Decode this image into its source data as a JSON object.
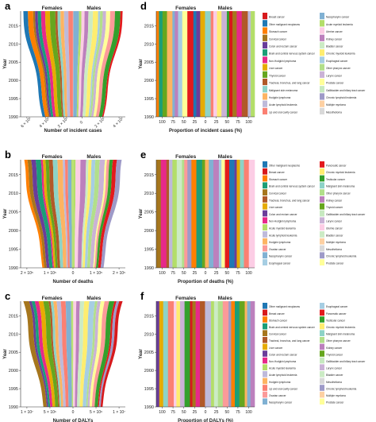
{
  "chart_data": [
    {
      "panel": "a",
      "type": "area",
      "kind": "streamgraph",
      "top_labels": [
        "Females",
        "Males"
      ],
      "xlabel": "Number of incident cases",
      "ylabel": "Year",
      "x_ticks": [
        "6 × 10⁵",
        "4 × 10⁵",
        "2 × 10⁵",
        "0",
        "2 × 10⁵",
        "4 × 10⁵"
      ],
      "y_ticks": [
        "1990",
        "1995",
        "2000",
        "2005",
        "2010",
        "2015"
      ],
      "ylim": [
        1990,
        2019
      ],
      "grid": false
    },
    {
      "panel": "b",
      "type": "area",
      "kind": "streamgraph",
      "top_labels": [
        "Females",
        "Males"
      ],
      "xlabel": "Number of deaths",
      "ylabel": "Year",
      "x_ticks": [
        "2 × 10⁵",
        "1 × 10⁵",
        "0",
        "1 × 10⁵",
        "2 × 10⁵"
      ],
      "y_ticks": [
        "1990",
        "1995",
        "2000",
        "2005",
        "2010",
        "2015"
      ],
      "ylim": [
        1990,
        2019
      ],
      "grid": false
    },
    {
      "panel": "c",
      "type": "area",
      "kind": "streamgraph",
      "top_labels": [
        "Females",
        "Males"
      ],
      "xlabel": "Number of DALYs",
      "ylabel": "Year",
      "x_ticks": [
        "1 × 10⁷",
        "5 × 10⁶",
        "0",
        "5 × 10⁶",
        "1 × 10⁷"
      ],
      "y_ticks": [
        "1990",
        "1995",
        "2000",
        "2005",
        "2010",
        "2015"
      ],
      "ylim": [
        1990,
        2019
      ],
      "grid": false
    },
    {
      "panel": "d",
      "type": "area",
      "kind": "stacked-proportion",
      "top_labels": [
        "Females",
        "Males"
      ],
      "xlabel": "Proportion of incident cases (%)",
      "ylabel": "Year",
      "x_ticks": [
        "100",
        "75",
        "50",
        "25",
        "0",
        "25",
        "50",
        "75",
        "100"
      ],
      "y_ticks": [
        "1990",
        "1995",
        "2000",
        "2005",
        "2010",
        "2015"
      ],
      "ylim": [
        1990,
        2019
      ],
      "legend_position": "right",
      "legend": [
        {
          "name": "Breast cancer",
          "color": "#d7191c"
        },
        {
          "name": "Other malignant neoplasms",
          "color": "#1f78b4"
        },
        {
          "name": "Stomach cancer",
          "color": "#ff7f00"
        },
        {
          "name": "Cervical cancer",
          "color": "#a6761d"
        },
        {
          "name": "Colon and rectum cancer",
          "color": "#6a3d9a"
        },
        {
          "name": "Brain and central nervous system cancer",
          "color": "#1b9e77"
        },
        {
          "name": "Non-Hodgkin lymphoma",
          "color": "#e7298a"
        },
        {
          "name": "Liver cancer",
          "color": "#e6ab02"
        },
        {
          "name": "Thyroid cancer",
          "color": "#66a61e"
        },
        {
          "name": "Tracheal, bronchus, and lung cancer",
          "color": "#b15928"
        },
        {
          "name": "Malignant skin melanoma",
          "color": "#8dd3c7"
        },
        {
          "name": "Hodgkin lymphoma",
          "color": "#fdb462"
        },
        {
          "name": "Acute lymphoid leukemia",
          "color": "#bebada"
        },
        {
          "name": "Lip and oral cavity cancer",
          "color": "#fb8072"
        },
        {
          "name": "Nasopharynx cancer",
          "color": "#80b1d3"
        },
        {
          "name": "Acute myeloid leukemia",
          "color": "#b3de69"
        },
        {
          "name": "Uterine cancer",
          "color": "#fccde5"
        },
        {
          "name": "Kidney cancer",
          "color": "#bc80bd"
        },
        {
          "name": "Bladder cancer",
          "color": "#ccebc5"
        },
        {
          "name": "Chronic myeloid leukemia",
          "color": "#ffed6f"
        },
        {
          "name": "Esophageal cancer",
          "color": "#a6cee3"
        },
        {
          "name": "Other pharynx cancer",
          "color": "#b2df8a"
        },
        {
          "name": "Larynx cancer",
          "color": "#cab2d6"
        },
        {
          "name": "Prostate cancer",
          "color": "#ffff99"
        },
        {
          "name": "Gallbladder and biliary tract cancer",
          "color": "#c7e9c0"
        },
        {
          "name": "Chronic lymphoid leukemia",
          "color": "#9e9ac8"
        },
        {
          "name": "Multiple myeloma",
          "color": "#fdd0a2"
        },
        {
          "name": "Mesothelioma",
          "color": "#d9d9d9"
        }
      ]
    },
    {
      "panel": "e",
      "type": "area",
      "kind": "stacked-proportion",
      "top_labels": [
        "Females",
        "Males"
      ],
      "xlabel": "Proportion of deaths (%)",
      "ylabel": "Year",
      "x_ticks": [
        "100",
        "75",
        "50",
        "25",
        "0",
        "25",
        "50",
        "75",
        "100"
      ],
      "y_ticks": [
        "1990",
        "1995",
        "2000",
        "2005",
        "2010",
        "2015"
      ],
      "ylim": [
        1990,
        2019
      ],
      "legend_position": "right",
      "legend": [
        {
          "name": "Other malignant neoplasms",
          "color": "#1f78b4"
        },
        {
          "name": "Breast cancer",
          "color": "#d7191c"
        },
        {
          "name": "Stomach cancer",
          "color": "#ff7f00"
        },
        {
          "name": "Brain and central nervous system cancer",
          "color": "#1b9e77"
        },
        {
          "name": "Cervical cancer",
          "color": "#a6761d"
        },
        {
          "name": "Tracheal, bronchus, and lung cancer",
          "color": "#b15928"
        },
        {
          "name": "Liver cancer",
          "color": "#e6ab02"
        },
        {
          "name": "Colon and rectum cancer",
          "color": "#6a3d9a"
        },
        {
          "name": "Non-Hodgkin lymphoma",
          "color": "#e7298a"
        },
        {
          "name": "Acute myeloid leukemia",
          "color": "#b3de69"
        },
        {
          "name": "Acute lymphoid leukemia",
          "color": "#bebada"
        },
        {
          "name": "Hodgkin lymphoma",
          "color": "#fdb462"
        },
        {
          "name": "Ovarian cancer",
          "color": "#fb9a99"
        },
        {
          "name": "Nasopharynx cancer",
          "color": "#80b1d3"
        },
        {
          "name": "Esophageal cancer",
          "color": "#a6cee3"
        },
        {
          "name": "Pancreatic cancer",
          "color": "#e31a1c"
        },
        {
          "name": "Chronic myeloid leukemia",
          "color": "#ffed6f"
        },
        {
          "name": "Testicular cancer",
          "color": "#33a02c"
        },
        {
          "name": "Malignant skin melanoma",
          "color": "#8dd3c7"
        },
        {
          "name": "Other pharynx cancer",
          "color": "#b2df8a"
        },
        {
          "name": "Kidney cancer",
          "color": "#bc80bd"
        },
        {
          "name": "Thyroid cancer",
          "color": "#66a61e"
        },
        {
          "name": "Gallbladder and biliary tract cancer",
          "color": "#c7e9c0"
        },
        {
          "name": "Larynx cancer",
          "color": "#cab2d6"
        },
        {
          "name": "Uterine cancer",
          "color": "#fccde5"
        },
        {
          "name": "Bladder cancer",
          "color": "#ccebc5"
        },
        {
          "name": "Multiple myeloma",
          "color": "#fdd0a2"
        },
        {
          "name": "Mesothelioma",
          "color": "#d9d9d9"
        },
        {
          "name": "Chronic lymphoid leukemia",
          "color": "#9e9ac8"
        },
        {
          "name": "Prostate cancer",
          "color": "#ffff99"
        }
      ]
    },
    {
      "panel": "f",
      "type": "area",
      "kind": "stacked-proportion",
      "top_labels": [
        "Females",
        "Males"
      ],
      "xlabel": "Proportion of DALYs (%)",
      "ylabel": "Year",
      "x_ticks": [
        "100",
        "75",
        "50",
        "25",
        "0",
        "25",
        "50",
        "75",
        "100"
      ],
      "y_ticks": [
        "1990",
        "1995",
        "2000",
        "2005",
        "2010",
        "2015"
      ],
      "ylim": [
        1990,
        2019
      ],
      "legend_position": "right",
      "legend": [
        {
          "name": "Other malignant neoplasms",
          "color": "#1f78b4"
        },
        {
          "name": "Breast cancer",
          "color": "#d7191c"
        },
        {
          "name": "Stomach cancer",
          "color": "#ff7f00"
        },
        {
          "name": "Brain and central nervous system cancer",
          "color": "#1b9e77"
        },
        {
          "name": "Cervical cancer",
          "color": "#a6761d"
        },
        {
          "name": "Tracheal, bronchus, and lung cancer",
          "color": "#b15928"
        },
        {
          "name": "Liver cancer",
          "color": "#e6ab02"
        },
        {
          "name": "Colon and rectum cancer",
          "color": "#6a3d9a"
        },
        {
          "name": "Non-Hodgkin lymphoma",
          "color": "#e7298a"
        },
        {
          "name": "Acute myeloid leukemia",
          "color": "#b3de69"
        },
        {
          "name": "Acute lymphoid leukemia",
          "color": "#bebada"
        },
        {
          "name": "Hodgkin lymphoma",
          "color": "#fdb462"
        },
        {
          "name": "Lip and oral cavity cancer",
          "color": "#fb8072"
        },
        {
          "name": "Ovarian cancer",
          "color": "#fb9a99"
        },
        {
          "name": "Nasopharynx cancer",
          "color": "#80b1d3"
        },
        {
          "name": "Esophageal cancer",
          "color": "#a6cee3"
        },
        {
          "name": "Pancreatic cancer",
          "color": "#e31a1c"
        },
        {
          "name": "Testicular cancer",
          "color": "#33a02c"
        },
        {
          "name": "Chronic myeloid leukemia",
          "color": "#ffed6f"
        },
        {
          "name": "Malignant skin melanoma",
          "color": "#8dd3c7"
        },
        {
          "name": "Other pharynx cancer",
          "color": "#b2df8a"
        },
        {
          "name": "Kidney cancer",
          "color": "#bc80bd"
        },
        {
          "name": "Thyroid cancer",
          "color": "#66a61e"
        },
        {
          "name": "Gallbladder and biliary tract cancer",
          "color": "#c7e9c0"
        },
        {
          "name": "Larynx cancer",
          "color": "#cab2d6"
        },
        {
          "name": "Bladder cancer",
          "color": "#ccebc5"
        },
        {
          "name": "Mesothelioma",
          "color": "#d9d9d9"
        },
        {
          "name": "Chronic lymphoid leukemia",
          "color": "#9e9ac8"
        },
        {
          "name": "Multiple myeloma",
          "color": "#fdd0a2"
        },
        {
          "name": "Prostate cancer",
          "color": "#ffff99"
        }
      ]
    }
  ]
}
